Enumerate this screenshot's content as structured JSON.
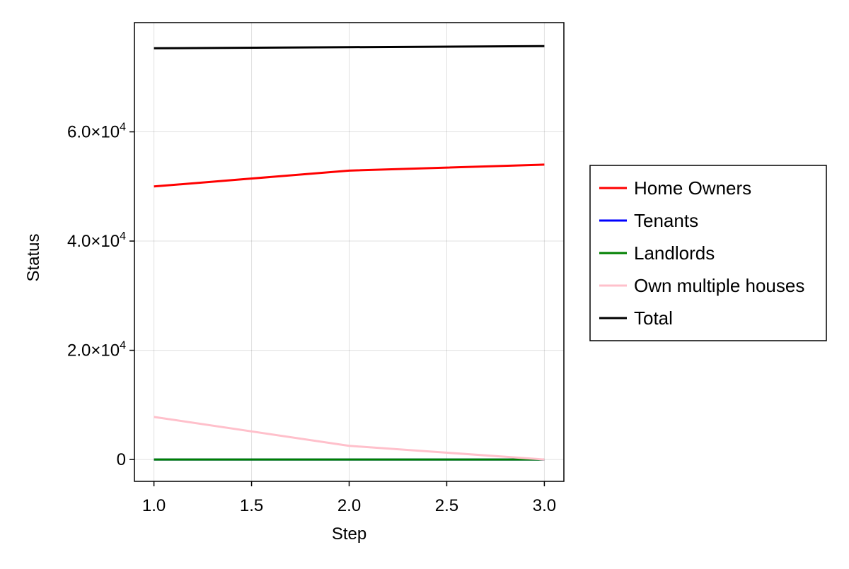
{
  "chart_data": {
    "type": "line",
    "title": "",
    "xlabel": "Step",
    "ylabel": "Status",
    "xlim": [
      0.9,
      3.1
    ],
    "ylim": [
      -4000,
      80000
    ],
    "x_ticks": [
      1.0,
      1.5,
      2.0,
      2.5,
      3.0
    ],
    "x_tick_labels": [
      "1.0",
      "1.5",
      "2.0",
      "2.5",
      "3.0"
    ],
    "y_ticks": [
      0,
      20000,
      40000,
      60000
    ],
    "y_tick_labels": [
      {
        "mantissa": "0",
        "exponent": ""
      },
      {
        "mantissa": "2.0×10",
        "exponent": "4"
      },
      {
        "mantissa": "4.0×10",
        "exponent": "4"
      },
      {
        "mantissa": "6.0×10",
        "exponent": "4"
      }
    ],
    "grid": true,
    "legend_position": "right",
    "x": [
      1,
      2,
      3
    ],
    "series": [
      {
        "name": "Home Owners",
        "color": "#ff0000",
        "values": [
          50000,
          52900,
          54000
        ]
      },
      {
        "name": "Tenants",
        "color": "#0000ff",
        "values": [
          0,
          0,
          0
        ]
      },
      {
        "name": "Landlords",
        "color": "#008000",
        "values": [
          0,
          0,
          0
        ]
      },
      {
        "name": "Own multiple houses",
        "color": "#ffc0cb",
        "values": [
          7800,
          2500,
          0
        ]
      },
      {
        "name": "Total",
        "color": "#000000",
        "values": [
          75300,
          75500,
          75700
        ]
      }
    ]
  }
}
